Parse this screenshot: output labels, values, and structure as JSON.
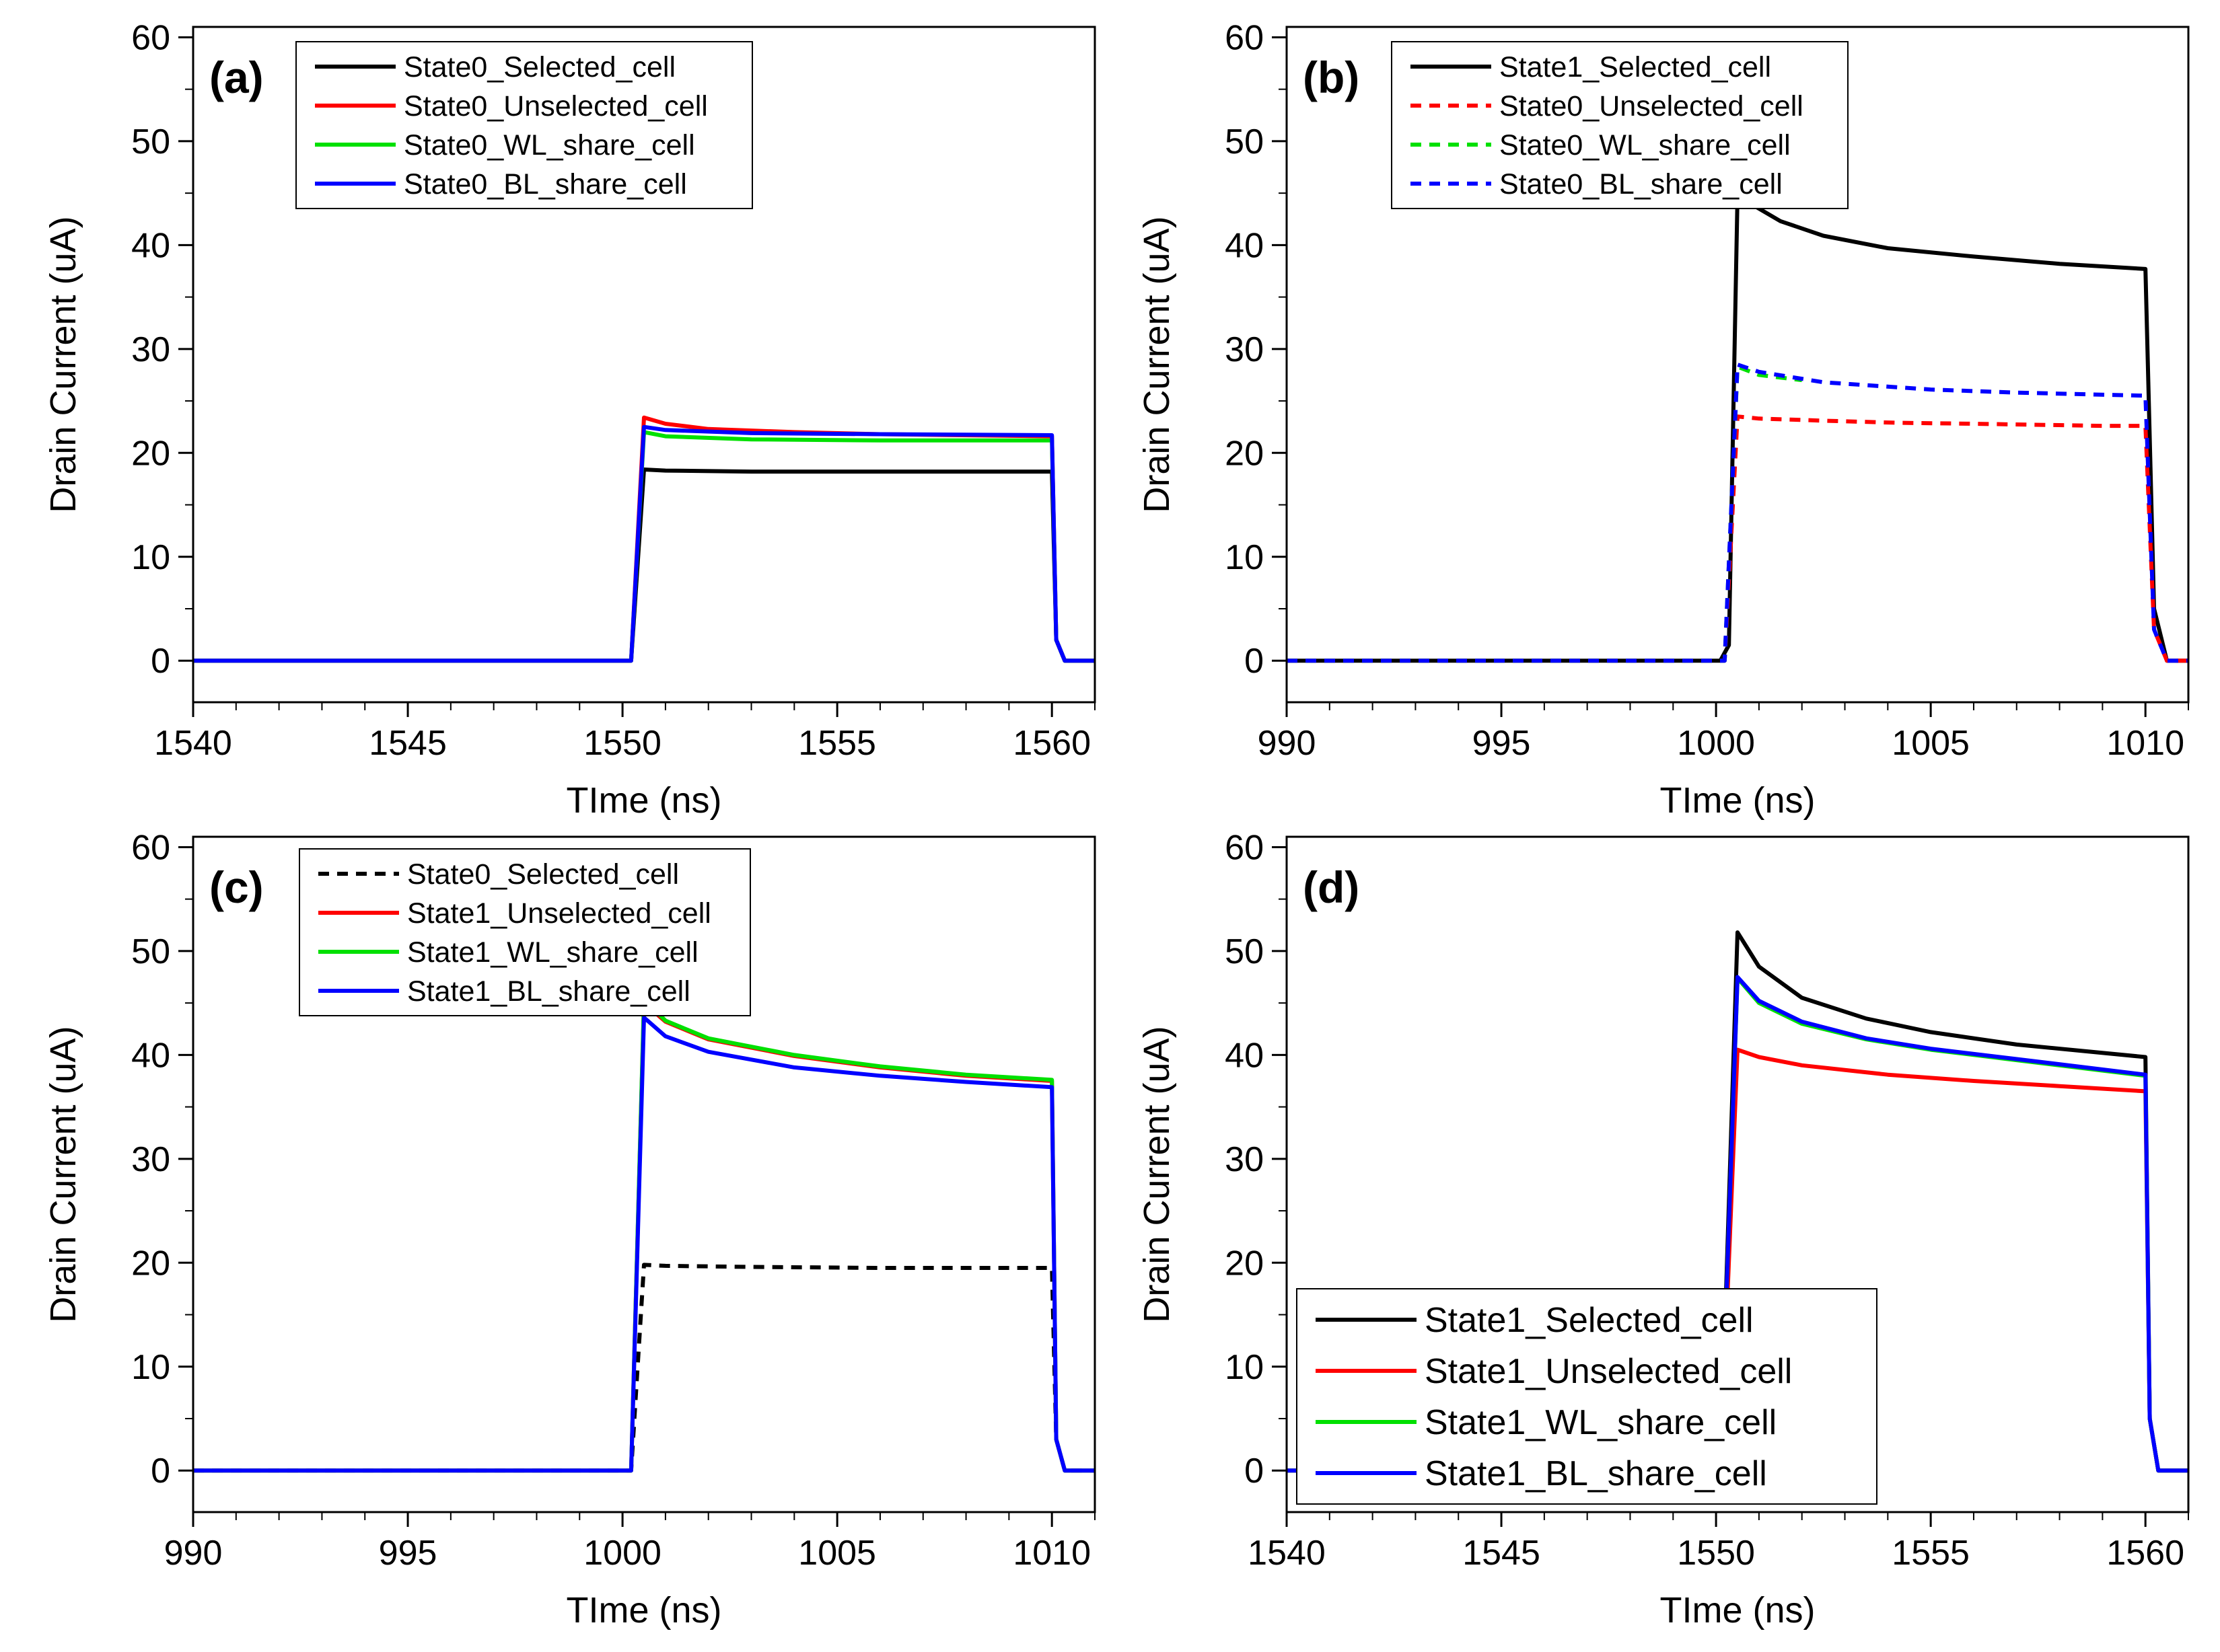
{
  "colors": {
    "black": "#000000",
    "red": "#ff0000",
    "green": "#00e000",
    "blue": "#0000ff"
  },
  "chart_data": [
    {
      "panel_label": "(a)",
      "type": "line",
      "xlabel": "TIme (ns)",
      "ylabel": "Drain Current (uA)",
      "xlim": [
        1540,
        1561
      ],
      "ylim": [
        -4,
        61
      ],
      "xticks": [
        1540,
        1545,
        1550,
        1555,
        1560
      ],
      "yticks": [
        0,
        10,
        20,
        30,
        40,
        50,
        60
      ],
      "legend_position": "top-left",
      "legend": [
        "State0_Selected_cell",
        "State0_Unselected_cell",
        "State0_WL_share_cell",
        "State0_BL_share_cell"
      ],
      "series": [
        {
          "name": "State0_Selected_cell",
          "color": "black",
          "dash": false,
          "x": [
            1540,
            1550.2,
            1550.5,
            1551,
            1553,
            1556,
            1560,
            1560.1,
            1560.3,
            1561
          ],
          "y": [
            0,
            0,
            18.4,
            18.3,
            18.2,
            18.2,
            18.2,
            2,
            0,
            0
          ]
        },
        {
          "name": "State0_Unselected_cell",
          "color": "red",
          "dash": false,
          "x": [
            1540,
            1550.2,
            1550.5,
            1551,
            1552,
            1554,
            1556,
            1560,
            1560.1,
            1560.3,
            1561
          ],
          "y": [
            0,
            0,
            23.4,
            22.8,
            22.3,
            22,
            21.8,
            21.6,
            2,
            0,
            0
          ]
        },
        {
          "name": "State0_WL_share_cell",
          "color": "green",
          "dash": false,
          "x": [
            1540,
            1550.2,
            1550.5,
            1551,
            1553,
            1556,
            1560,
            1560.1,
            1560.3,
            1561
          ],
          "y": [
            0,
            0,
            22,
            21.6,
            21.3,
            21.2,
            21.2,
            2,
            0,
            0
          ]
        },
        {
          "name": "State0_BL_share_cell",
          "color": "blue",
          "dash": false,
          "x": [
            1540,
            1550.2,
            1550.5,
            1551,
            1553,
            1556,
            1560,
            1560.1,
            1560.3,
            1561
          ],
          "y": [
            0,
            0,
            22.5,
            22.2,
            21.9,
            21.8,
            21.7,
            2,
            0,
            0
          ]
        }
      ]
    },
    {
      "panel_label": "(b)",
      "type": "line",
      "xlabel": "TIme (ns)",
      "ylabel": "Drain Current (uA)",
      "xlim": [
        990,
        1011
      ],
      "ylim": [
        -4,
        61
      ],
      "xticks": [
        990,
        995,
        1000,
        1005,
        1010
      ],
      "yticks": [
        0,
        10,
        20,
        30,
        40,
        50,
        60
      ],
      "legend_position": "top-left",
      "legend": [
        "State1_Selected_cell",
        "State0_Unselected_cell",
        "State0_WL_share_cell",
        "State0_BL_share_cell"
      ],
      "series": [
        {
          "name": "State1_Selected_cell",
          "color": "black",
          "dash": false,
          "x": [
            990,
            1000.1,
            1000.3,
            1000.5,
            1000.8,
            1001.5,
            1002.5,
            1004,
            1006,
            1008,
            1010,
            1010.2,
            1010.5,
            1011
          ],
          "y": [
            0,
            0,
            1.5,
            44.8,
            44,
            42.3,
            40.9,
            39.7,
            38.9,
            38.2,
            37.7,
            5,
            0,
            0
          ]
        },
        {
          "name": "State0_Unselected_cell",
          "color": "red",
          "dash": true,
          "x": [
            990,
            1000.2,
            1000.5,
            1001,
            1002.5,
            1004.2,
            1006,
            1009,
            1010,
            1010.2,
            1010.5,
            1011
          ],
          "y": [
            0,
            0,
            23.5,
            23.3,
            23.1,
            22.9,
            22.8,
            22.6,
            22.6,
            3,
            0,
            0
          ]
        },
        {
          "name": "State0_WL_share_cell",
          "color": "green",
          "dash": true,
          "x": [
            990,
            1000.2,
            1000.5,
            1001,
            1002
          ],
          "y": [
            0,
            0,
            28.3,
            27.5,
            27
          ]
        },
        {
          "name": "State0_BL_share_cell",
          "color": "blue",
          "dash": true,
          "x": [
            990,
            1000.2,
            1000.5,
            1001,
            1002.5,
            1005,
            1007,
            1010,
            1010.2,
            1010.5,
            1011
          ],
          "y": [
            0,
            0,
            28.5,
            27.8,
            26.8,
            26.1,
            25.8,
            25.5,
            3,
            0,
            0
          ]
        }
      ]
    },
    {
      "panel_label": "(c)",
      "type": "line",
      "xlabel": "TIme (ns)",
      "ylabel": "Drain Current (uA)",
      "xlim": [
        990,
        1011
      ],
      "ylim": [
        -4,
        61
      ],
      "xticks": [
        990,
        995,
        1000,
        1005,
        1010
      ],
      "yticks": [
        0,
        10,
        20,
        30,
        40,
        50,
        60
      ],
      "legend_position": "top-left",
      "legend": [
        "State0_Selected_cell",
        "State1_Unselected_cell",
        "State1_WL_share_cell",
        "State1_BL_share_cell"
      ],
      "series": [
        {
          "name": "State0_Selected_cell",
          "color": "black",
          "dash": true,
          "x": [
            990,
            1000.2,
            1000.5,
            1001,
            1003,
            1006,
            1009,
            1010,
            1010.1,
            1010.3,
            1011
          ],
          "y": [
            0,
            0,
            19.8,
            19.7,
            19.6,
            19.5,
            19.5,
            19.5,
            3,
            0,
            0
          ]
        },
        {
          "name": "State1_Unselected_cell",
          "color": "red",
          "dash": false,
          "x": [
            990,
            1000.2,
            1000.5,
            1001,
            1002,
            1004,
            1006,
            1008,
            1010,
            1010.1,
            1010.3,
            1011
          ],
          "y": [
            0,
            0,
            45,
            43.2,
            41.5,
            39.9,
            38.8,
            38,
            37.5,
            3,
            0,
            0
          ]
        },
        {
          "name": "State1_WL_share_cell",
          "color": "green",
          "dash": false,
          "x": [
            990,
            1000.2,
            1000.5,
            1001,
            1002,
            1004,
            1006,
            1008,
            1010,
            1010.1,
            1010.3,
            1011
          ],
          "y": [
            0,
            0,
            45.4,
            43.3,
            41.6,
            40,
            38.9,
            38.1,
            37.6,
            3,
            0,
            0
          ]
        },
        {
          "name": "State1_BL_share_cell",
          "color": "blue",
          "dash": false,
          "x": [
            990,
            1000.2,
            1000.5,
            1001,
            1002,
            1004,
            1006,
            1008,
            1010,
            1010.1,
            1010.3,
            1011
          ],
          "y": [
            0,
            0,
            43.6,
            41.8,
            40.3,
            38.8,
            38,
            37.4,
            36.9,
            3,
            0,
            0
          ]
        }
      ]
    },
    {
      "panel_label": "(d)",
      "type": "line",
      "xlabel": "TIme (ns)",
      "ylabel": "Drain Current (uA)",
      "xlim": [
        1540,
        1561
      ],
      "ylim": [
        -4,
        61
      ],
      "xticks": [
        1540,
        1545,
        1550,
        1555,
        1560
      ],
      "yticks": [
        0,
        10,
        20,
        30,
        40,
        50,
        60
      ],
      "legend_position": "bottom-left",
      "legend": [
        "State1_Selected_cell",
        "State1_Unselected_cell",
        "State1_WL_share_cell",
        "State1_BL_share_cell"
      ],
      "series": [
        {
          "name": "State1_Selected_cell",
          "color": "black",
          "dash": false,
          "x": [
            1540,
            1550.1,
            1550.5,
            1551,
            1552,
            1553.5,
            1555,
            1557,
            1560,
            1560.1,
            1560.3,
            1561
          ],
          "y": [
            0,
            0,
            51.8,
            48.5,
            45.5,
            43.5,
            42.2,
            41,
            39.8,
            5,
            0,
            0
          ]
        },
        {
          "name": "State1_Unselected_cell",
          "color": "red",
          "dash": false,
          "x": [
            1540,
            1550.1,
            1550.5,
            1551,
            1552,
            1554,
            1556,
            1558,
            1560,
            1560.1,
            1560.3,
            1561
          ],
          "y": [
            0,
            0,
            40.5,
            39.8,
            39,
            38.1,
            37.5,
            37,
            36.5,
            5,
            0,
            0
          ]
        },
        {
          "name": "State1_WL_share_cell",
          "color": "green",
          "dash": false,
          "x": [
            1540,
            1550.1,
            1550.5,
            1551,
            1552,
            1553.5,
            1555,
            1557,
            1560,
            1560.1,
            1560.3,
            1561
          ],
          "y": [
            0,
            0,
            47.4,
            45,
            43,
            41.5,
            40.5,
            39.5,
            38,
            5,
            0,
            0
          ]
        },
        {
          "name": "State1_BL_share_cell",
          "color": "blue",
          "dash": false,
          "x": [
            1540,
            1550.1,
            1550.5,
            1551,
            1552,
            1553.5,
            1555,
            1557,
            1560,
            1560.1,
            1560.3,
            1561
          ],
          "y": [
            0,
            0,
            47.5,
            45.2,
            43.2,
            41.6,
            40.6,
            39.6,
            38.1,
            5,
            0,
            0
          ]
        }
      ]
    }
  ]
}
